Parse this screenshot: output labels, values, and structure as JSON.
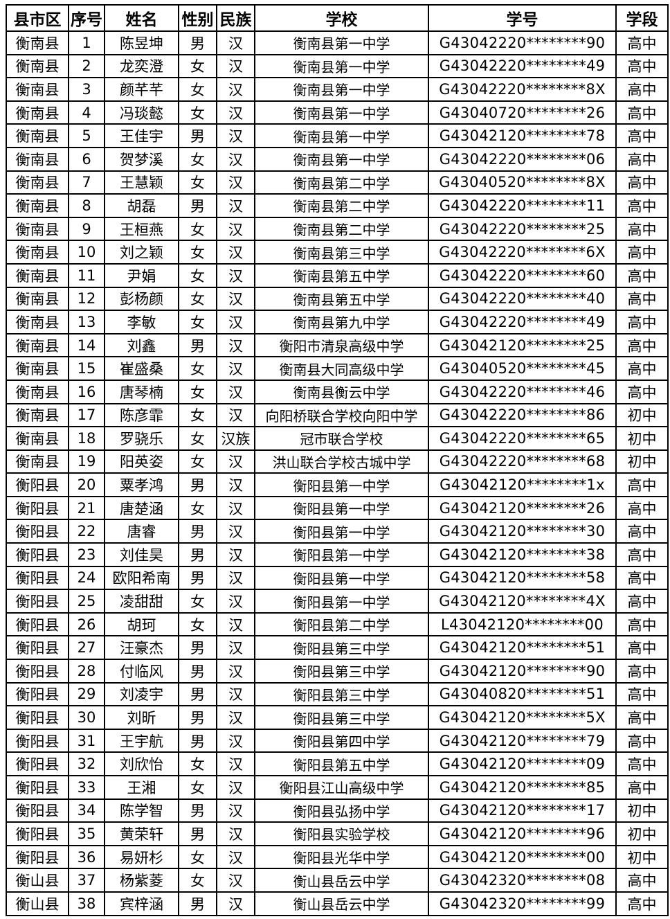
{
  "table": {
    "header": [
      "县市区",
      "序号",
      "姓名",
      "性别",
      "民族",
      "学校",
      "学号",
      "学段"
    ],
    "rows": [
      [
        "衡南县",
        1,
        "陈昱坤",
        "男",
        "汉",
        "衡南县第一中学",
        "G43042220********90",
        "高中"
      ],
      [
        "衡南县",
        2,
        "龙奕澄",
        "女",
        "汉",
        "衡南县第一中学",
        "G43042220********49",
        "高中"
      ],
      [
        "衡南县",
        3,
        "颜芊芊",
        "女",
        "汉",
        "衡南县第一中学",
        "G43042220********8X",
        "高中"
      ],
      [
        "衡南县",
        4,
        "冯琰懿",
        "女",
        "汉",
        "衡南县第一中学",
        "G43040720********26",
        "高中"
      ],
      [
        "衡南县",
        5,
        "王佳宇",
        "男",
        "汉",
        "衡南县第一中学",
        "G43042120********78",
        "高中"
      ],
      [
        "衡南县",
        6,
        "贺梦溪",
        "女",
        "汉",
        "衡南县第一中学",
        "G43042220********06",
        "高中"
      ],
      [
        "衡南县",
        7,
        "王慧颖",
        "女",
        "汉",
        "衡南县第二中学",
        "G43040520********8X",
        "高中"
      ],
      [
        "衡南县",
        8,
        "胡磊",
        "男",
        "汉",
        "衡南县第二中学",
        "G43042220********11",
        "高中"
      ],
      [
        "衡南县",
        9,
        "王桓燕",
        "女",
        "汉",
        "衡南县第二中学",
        "G43042220********25",
        "高中"
      ],
      [
        "衡南县",
        10,
        "刘之颖",
        "女",
        "汉",
        "衡南县第三中学",
        "G43042220********6X",
        "高中"
      ],
      [
        "衡南县",
        11,
        "尹娟",
        "女",
        "汉",
        "衡南县第五中学",
        "G43042220********60",
        "高中"
      ],
      [
        "衡南县",
        12,
        "彭杨颜",
        "女",
        "汉",
        "衡南县第五中学",
        "G43042220********40",
        "高中"
      ],
      [
        "衡南县",
        13,
        "李敏",
        "女",
        "汉",
        "衡南县第九中学",
        "G43042220********49",
        "高中"
      ],
      [
        "衡南县",
        14,
        "刘鑫",
        "男",
        "汉",
        "衡阳市清泉高级中学",
        "G43042120********25",
        "高中"
      ],
      [
        "衡南县",
        15,
        "崔盛桑",
        "女",
        "汉",
        "衡南县大同高级中学",
        "G43040520********45",
        "高中"
      ],
      [
        "衡南县",
        16,
        "唐琴楠",
        "女",
        "汉",
        "衡南县衡云中学",
        "G43042220********46",
        "高中"
      ],
      [
        "衡南县",
        17,
        "陈彦霏",
        "女",
        "汉",
        "向阳桥联合学校向阳中学",
        "G43042220********86",
        "初中"
      ],
      [
        "衡南县",
        18,
        "罗骁乐",
        "女",
        "汉族",
        "冠市联合学校",
        "G43042220********65",
        "初中"
      ],
      [
        "衡南县",
        19,
        "阳英姿",
        "女",
        "汉",
        "洪山联合学校古城中学",
        "G43042220********68",
        "初中"
      ],
      [
        "衡阳县",
        20,
        "粟孝鸿",
        "男",
        "汉",
        "衡阳县第一中学",
        "G43042120********1x",
        "高中"
      ],
      [
        "衡阳县",
        21,
        "唐楚涵",
        "女",
        "汉",
        "衡阳县第一中学",
        "G43042120********26",
        "高中"
      ],
      [
        "衡阳县",
        22,
        "唐睿",
        "男",
        "汉",
        "衡阳县第一中学",
        "G43042120********30",
        "高中"
      ],
      [
        "衡阳县",
        23,
        "刘佳昊",
        "男",
        "汉",
        "衡阳县第一中学",
        "G43042120********38",
        "高中"
      ],
      [
        "衡阳县",
        24,
        "欧阳希南",
        "男",
        "汉",
        "衡阳县第一中学",
        "G43042120********58",
        "高中"
      ],
      [
        "衡阳县",
        25,
        "凌甜甜",
        "女",
        "汉",
        "衡阳县第一中学",
        "G43042120********4X",
        "高中"
      ],
      [
        "衡阳县",
        26,
        "胡珂",
        "女",
        "汉",
        "衡阳县第二中学",
        "L43042120********00",
        "高中"
      ],
      [
        "衡阳县",
        27,
        "汪豪杰",
        "男",
        "汉",
        "衡阳县第三中学",
        "G43042120********51",
        "高中"
      ],
      [
        "衡阳县",
        28,
        "付临风",
        "男",
        "汉",
        "衡阳县第三中学",
        "G43042120********90",
        "高中"
      ],
      [
        "衡阳县",
        29,
        "刘凌宇",
        "男",
        "汉",
        "衡阳县第三中学",
        "G43040820********51",
        "高中"
      ],
      [
        "衡阳县",
        30,
        "刘昕",
        "男",
        "汉",
        "衡阳县第三中学",
        "G43042120********5X",
        "高中"
      ],
      [
        "衡阳县",
        31,
        "王宇航",
        "男",
        "汉",
        "衡阳县第四中学",
        "G43042120********79",
        "高中"
      ],
      [
        "衡阳县",
        32,
        "刘欣怡",
        "女",
        "汉",
        "衡阳县第五中学",
        "G43042120********09",
        "高中"
      ],
      [
        "衡阳县",
        33,
        "王湘",
        "女",
        "汉",
        "衡阳县江山高级中学",
        "G43042120********85",
        "高中"
      ],
      [
        "衡阳县",
        34,
        "陈学智",
        "男",
        "汉",
        "衡阳县弘扬中学",
        "G43042120********17",
        "初中"
      ],
      [
        "衡阳县",
        35,
        "黄荣轩",
        "男",
        "汉",
        "衡阳县实验学校",
        "G43042120********96",
        "初中"
      ],
      [
        "衡阳县",
        36,
        "易妍杉",
        "女",
        "汉",
        "衡阳县光华中学",
        "G43042120********00",
        "初中"
      ],
      [
        "衡山县",
        37,
        "杨紫菱",
        "女",
        "汉",
        "衡山县岳云中学",
        "G43042320********08",
        "高中"
      ],
      [
        "衡山县",
        38,
        "宾梓涵",
        "男",
        "汉",
        "衡山县岳云中学",
        "G43042320********99",
        "高中"
      ]
    ]
  }
}
